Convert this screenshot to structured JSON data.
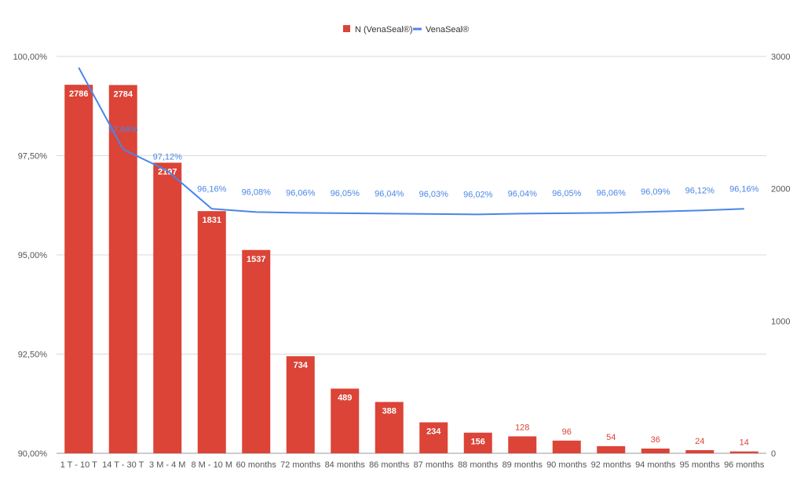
{
  "chart_data": {
    "type": "bar",
    "categories": [
      "1 T - 10 T",
      "14 T - 30 T",
      "3 M - 4 M",
      "8 M - 10 M",
      "60 months",
      "72 months",
      "84 months",
      "86 months",
      "87 months",
      "88 months",
      "89 months",
      "90 months",
      "92 months",
      "94 months",
      "95 months",
      "96 months"
    ],
    "series": [
      {
        "name": "N (VenaSeal®)",
        "type": "bar",
        "axis": "right",
        "color": "#db4437",
        "values": [
          2786,
          2784,
          2197,
          1831,
          1537,
          734,
          489,
          388,
          234,
          156,
          128,
          96,
          54,
          36,
          24,
          14
        ],
        "labels": [
          "2786",
          "2784",
          "2197",
          "1831",
          "1537",
          "734",
          "489",
          "388",
          "234",
          "156",
          "128",
          "96",
          "54",
          "36",
          "24",
          "14"
        ]
      },
      {
        "name": "VenaSeal®",
        "type": "line",
        "axis": "left",
        "color": "#4a86e8",
        "values": [
          99.72,
          97.66,
          97.12,
          96.16,
          96.08,
          96.06,
          96.05,
          96.04,
          96.03,
          96.02,
          96.04,
          96.05,
          96.06,
          96.09,
          96.12,
          96.16
        ],
        "labels": [
          "",
          "97,66%",
          "97,12%",
          "96,16%",
          "96,08%",
          "96,06%",
          "96,05%",
          "96,04%",
          "96,03%",
          "96,02%",
          "96,04%",
          "96,05%",
          "96,06%",
          "96,09%",
          "96,12%",
          "96,16%"
        ]
      }
    ],
    "left_axis": {
      "ylim": [
        90,
        100
      ],
      "ticks": [
        90,
        92.5,
        95,
        97.5,
        100
      ],
      "tick_labels": [
        "90,00%",
        "92,50%",
        "95,00%",
        "97,50%",
        "100,00%"
      ]
    },
    "right_axis": {
      "ylim": [
        0,
        3000
      ],
      "ticks": [
        0,
        1000,
        2000,
        3000
      ],
      "tick_labels": [
        "0",
        "1000",
        "2000",
        "3000"
      ]
    },
    "title": "",
    "xlabel": "",
    "ylabel": "",
    "grid": true,
    "legend_position": "top-center"
  }
}
